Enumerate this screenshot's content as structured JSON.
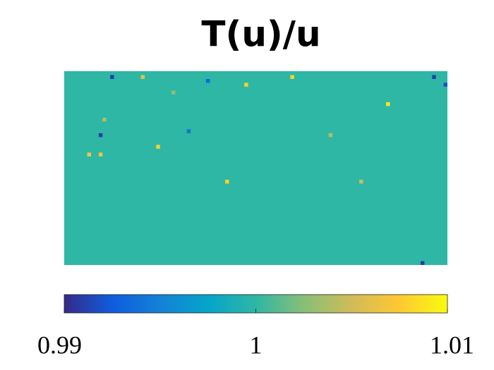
{
  "chart_data": {
    "type": "heatmap",
    "title": "T(u)/u",
    "rows": 50,
    "cols": 100,
    "background": 1,
    "cells": [
      {
        "row": 1,
        "col": 12,
        "value": 0.991
      },
      {
        "row": 1,
        "col": 20,
        "value": 1.006
      },
      {
        "row": 2,
        "col": 37,
        "value": 0.993
      },
      {
        "row": 3,
        "col": 47,
        "value": 1.008
      },
      {
        "row": 1,
        "col": 59,
        "value": 1.008
      },
      {
        "row": 1,
        "col": 96,
        "value": 0.991
      },
      {
        "row": 3,
        "col": 99,
        "value": 0.992
      },
      {
        "row": 8,
        "col": 84,
        "value": 1.009
      },
      {
        "row": 16,
        "col": 9,
        "value": 0.991
      },
      {
        "row": 12,
        "col": 10,
        "value": 1.004
      },
      {
        "row": 21,
        "col": 6,
        "value": 1.007
      },
      {
        "row": 21,
        "col": 9,
        "value": 1.007
      },
      {
        "row": 19,
        "col": 24,
        "value": 1.008
      },
      {
        "row": 15,
        "col": 32,
        "value": 0.994
      },
      {
        "row": 16,
        "col": 69,
        "value": 1.004
      },
      {
        "row": 28,
        "col": 42,
        "value": 1.008
      },
      {
        "row": 28,
        "col": 77,
        "value": 1.005
      },
      {
        "row": 49,
        "col": 93,
        "value": 0.991
      },
      {
        "row": 5,
        "col": 28,
        "value": 1.003
      }
    ],
    "clim": [
      0.99,
      1.01
    ],
    "colorbar_ticks": [
      0.99,
      1,
      1.01
    ]
  }
}
